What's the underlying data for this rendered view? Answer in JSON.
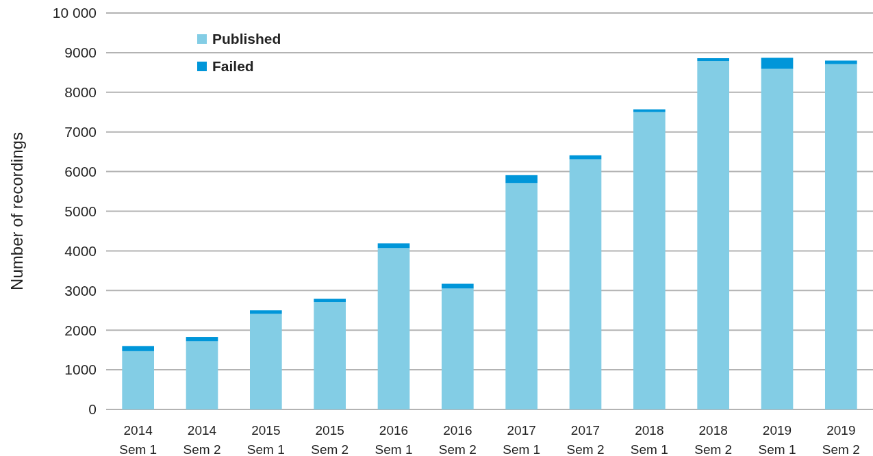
{
  "chart_data": {
    "type": "bar",
    "stacked": true,
    "ylabel": "Number of recordings",
    "categories": [
      "2014\nSem 1",
      "2014\nSem 2",
      "2015\nSem 1",
      "2015\nSem 2",
      "2016\nSem 1",
      "2016\nSem 2",
      "2017\nSem 1",
      "2017\nSem 2",
      "2018\nSem 1",
      "2018\nSem 2",
      "2019\nSem 1",
      "2019\nSem 2"
    ],
    "series": [
      {
        "name": "Published",
        "color": "#83cde5",
        "values": [
          1470,
          1720,
          2410,
          2710,
          4070,
          3050,
          5710,
          6310,
          7500,
          8790,
          8590,
          8710
        ]
      },
      {
        "name": "Failed",
        "color": "#0096d9",
        "values": [
          130,
          110,
          90,
          80,
          120,
          120,
          200,
          100,
          70,
          70,
          280,
          90
        ]
      }
    ],
    "ylim": [
      0,
      10000
    ],
    "yticks": [
      0,
      1000,
      2000,
      3000,
      4000,
      5000,
      6000,
      7000,
      8000,
      9000,
      {
        "value": 10000,
        "label": "10 000"
      }
    ],
    "grid": "y",
    "legend": "top left"
  }
}
